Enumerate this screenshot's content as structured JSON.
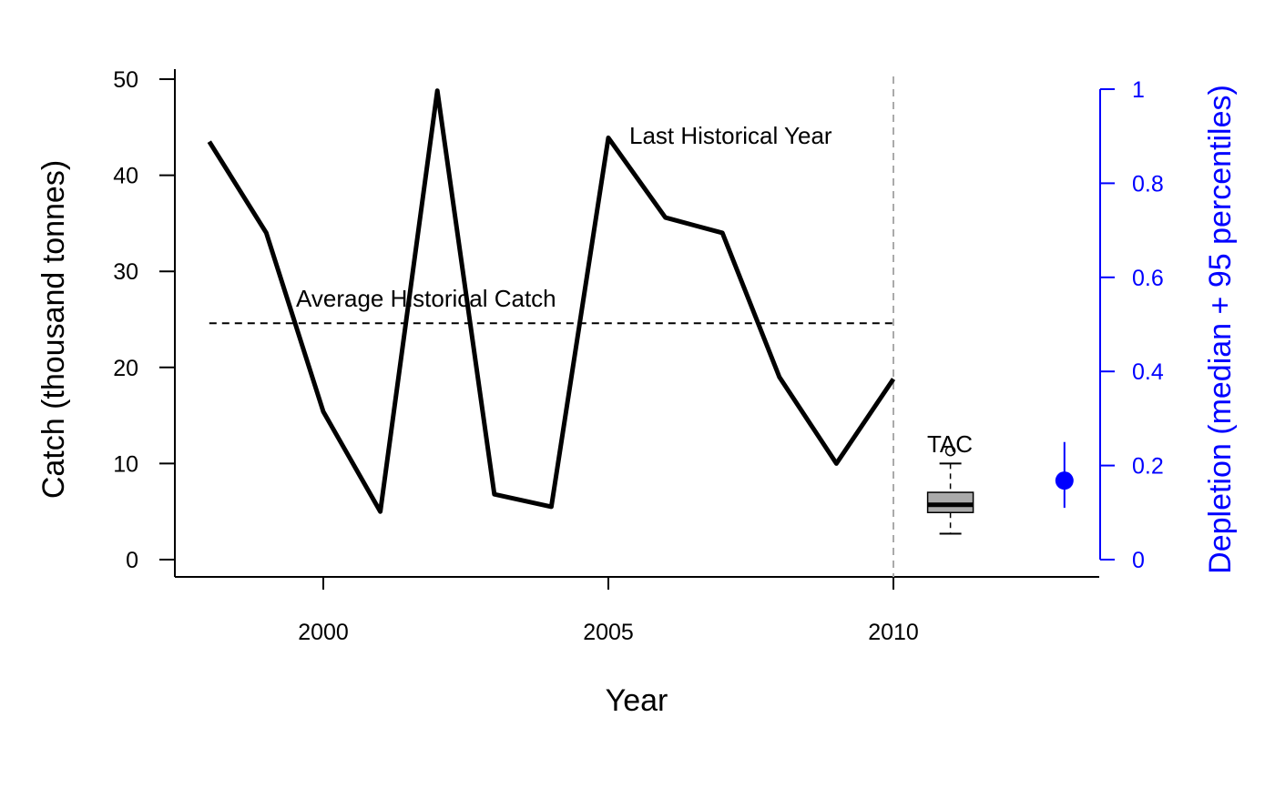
{
  "chart_data": {
    "type": "line",
    "xlabel": "Year",
    "ylabel": "Catch (thousand tonnes)",
    "ylabel_right": "Depletion (median + 95 percentiles)",
    "xticks": [
      2000,
      2005,
      2010
    ],
    "xlim": [
      1997.4,
      2013.6
    ],
    "yticks": [
      0,
      10,
      20,
      30,
      40,
      50
    ],
    "ylim": [
      -2,
      51
    ],
    "yticks_right": [
      "0",
      "0.2",
      "0.4",
      "0.6",
      "0.8",
      "1"
    ],
    "yticks_right_values": [
      0,
      0.2,
      0.4,
      0.6,
      0.8,
      1.0
    ],
    "series": [
      {
        "x": [
          1998,
          1999,
          2000,
          2001,
          2002,
          2003,
          2004,
          2005,
          2006,
          2007,
          2008,
          2009,
          2010
        ],
        "values": [
          43.5,
          34,
          15.4,
          5,
          48.8,
          6.8,
          5.5,
          43.9,
          35.6,
          34,
          19,
          10,
          18.8
        ],
        "color": "#000000"
      }
    ],
    "average_historical_catch": {
      "label": "Average Historical Catch",
      "value": 24.6,
      "x_range": [
        1998,
        2010
      ]
    },
    "last_historical_year": {
      "label": "Last Historical Year",
      "x": 2010
    },
    "tac_boxplot": {
      "label": "TAC",
      "x": 2011,
      "min": 2.7,
      "q1": 4.9,
      "median": 5.7,
      "q3": 7.0,
      "max": 10.0,
      "outliers": [
        11.3
      ],
      "fill": "#aaaaaa"
    },
    "depletion": {
      "x": 2013,
      "median": 0.168,
      "lower": 0.11,
      "upper": 0.25,
      "color": "#0000ff"
    }
  }
}
